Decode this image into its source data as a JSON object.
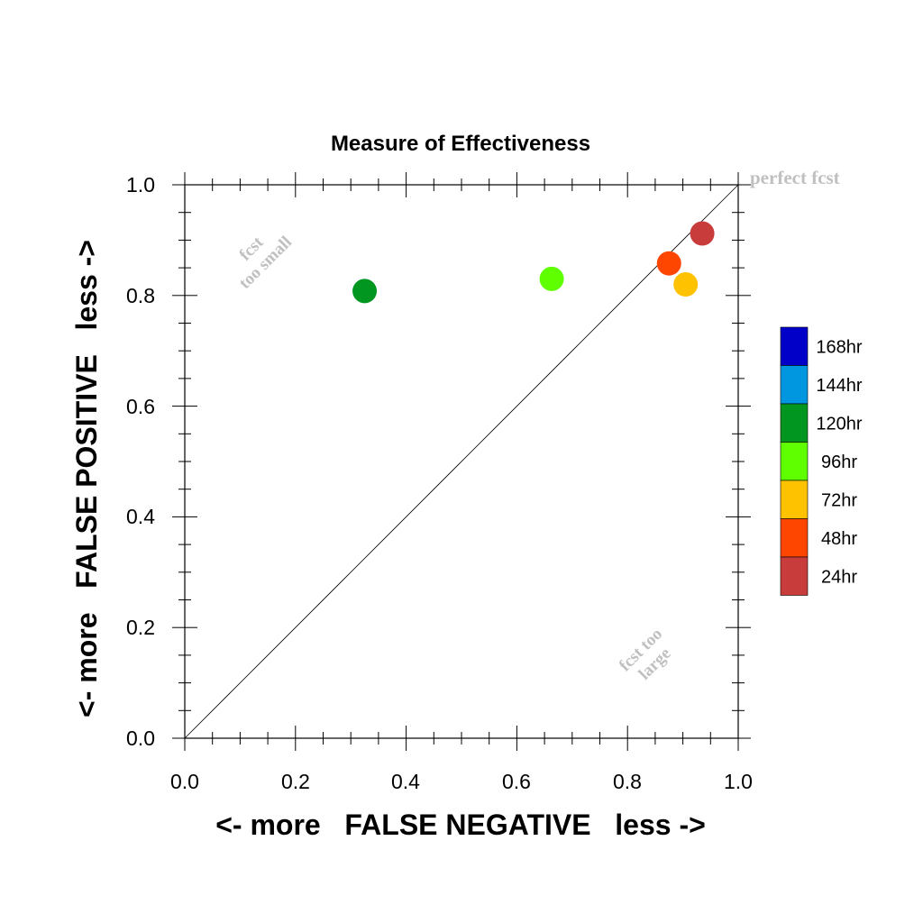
{
  "chart_data": {
    "type": "scatter",
    "title": "Measure of Effectiveness",
    "xlabel": "<- more   FALSE NEGATIVE   less ->",
    "ylabel": "<- more   FALSE POSITIVE   less ->",
    "xlim": [
      0.0,
      1.0
    ],
    "ylim": [
      0.0,
      1.0
    ],
    "xticks": [
      "0.0",
      "0.2",
      "0.4",
      "0.6",
      "0.8",
      "1.0"
    ],
    "yticks": [
      "0.0",
      "0.2",
      "0.4",
      "0.6",
      "0.8",
      "1.0"
    ],
    "grid": false,
    "diagonal_line": true,
    "legend_position": "right",
    "annotations": {
      "perfect": "perfect fcst",
      "small_line1": "fcst",
      "small_line2": "too small",
      "large_line1": "fcst too",
      "large_line2": "large"
    },
    "legend": [
      {
        "label": "168hr",
        "color": "#0000c8"
      },
      {
        "label": "144hr",
        "color": "#0096e0"
      },
      {
        "label": "120hr",
        "color": "#009620"
      },
      {
        "label": "96hr",
        "color": "#5fff00"
      },
      {
        "label": "72hr",
        "color": "#ffc200"
      },
      {
        "label": "48hr",
        "color": "#ff4600"
      },
      {
        "label": "24hr",
        "color": "#c83c3c"
      }
    ],
    "points": [
      {
        "label": "120hr",
        "x": 0.325,
        "y": 0.808,
        "color": "#009620"
      },
      {
        "label": "96hr",
        "x": 0.663,
        "y": 0.83,
        "color": "#5fff00"
      },
      {
        "label": "72hr",
        "x": 0.905,
        "y": 0.82,
        "color": "#ffc200"
      },
      {
        "label": "48hr",
        "x": 0.875,
        "y": 0.858,
        "color": "#ff4600"
      },
      {
        "label": "24hr",
        "x": 0.935,
        "y": 0.912,
        "color": "#c83c3c"
      }
    ]
  }
}
